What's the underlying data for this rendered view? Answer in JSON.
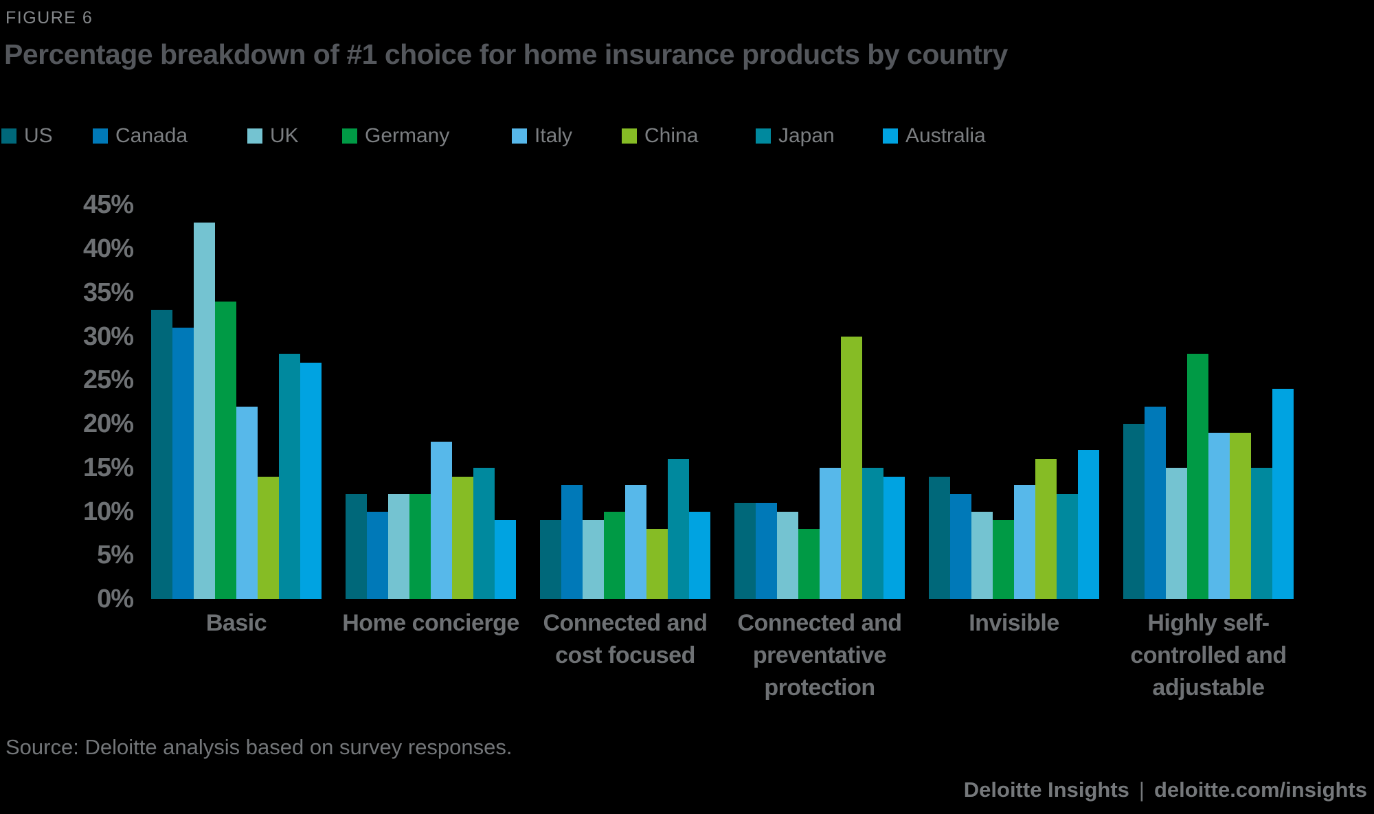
{
  "figure_label": "FIGURE 6",
  "title": "Percentage breakdown of #1 choice for home insurance products by country",
  "source": "Source: Deloitte analysis based on survey responses.",
  "footer": {
    "brand": "Deloitte Insights",
    "separator": "|",
    "url": "deloitte.com/insights"
  },
  "colors": {
    "background": "#000000",
    "title_text": "#54575C",
    "figure_label_text": "#85888B",
    "axis_text": "#6E7174",
    "legend_text": "#7B7E81",
    "source_text": "#737679",
    "footer_text": "#75787B"
  },
  "chart_data": {
    "type": "bar",
    "title": "Percentage breakdown of #1 choice for home insurance products by country",
    "categories": [
      "Basic",
      "Home concierge",
      "Connected and\ncost focused",
      "Connected and\npreventative\nprotection",
      "Invisible",
      "Highly self-\ncontrolled and\nadjustable"
    ],
    "series": [
      {
        "name": "US",
        "color": "#00687A",
        "values": [
          33,
          12,
          9,
          11,
          14,
          20
        ]
      },
      {
        "name": "Canada",
        "color": "#0079B8",
        "values": [
          31,
          10,
          13,
          11,
          12,
          22
        ]
      },
      {
        "name": "UK",
        "color": "#74C3D1",
        "values": [
          43,
          12,
          9,
          10,
          10,
          15
        ]
      },
      {
        "name": "Germany",
        "color": "#009A45",
        "values": [
          34,
          12,
          10,
          8,
          9,
          28
        ]
      },
      {
        "name": "Italy",
        "color": "#57B8EA",
        "values": [
          22,
          18,
          13,
          15,
          13,
          19
        ]
      },
      {
        "name": "China",
        "color": "#86BC25",
        "values": [
          14,
          14,
          8,
          30,
          16,
          19
        ]
      },
      {
        "name": "Japan",
        "color": "#00899E",
        "values": [
          28,
          15,
          16,
          15,
          12,
          15
        ]
      },
      {
        "name": "Australia",
        "color": "#00A3E1",
        "values": [
          27,
          9,
          10,
          14,
          17,
          24
        ]
      }
    ],
    "xlabel": "",
    "ylabel": "",
    "ylim": [
      0,
      45
    ],
    "ytick_step": 5,
    "yticks": [
      "0%",
      "5%",
      "10%",
      "15%",
      "20%",
      "25%",
      "30%",
      "35%",
      "40%",
      "45%"
    ],
    "grid": false,
    "legend_position": "top"
  }
}
